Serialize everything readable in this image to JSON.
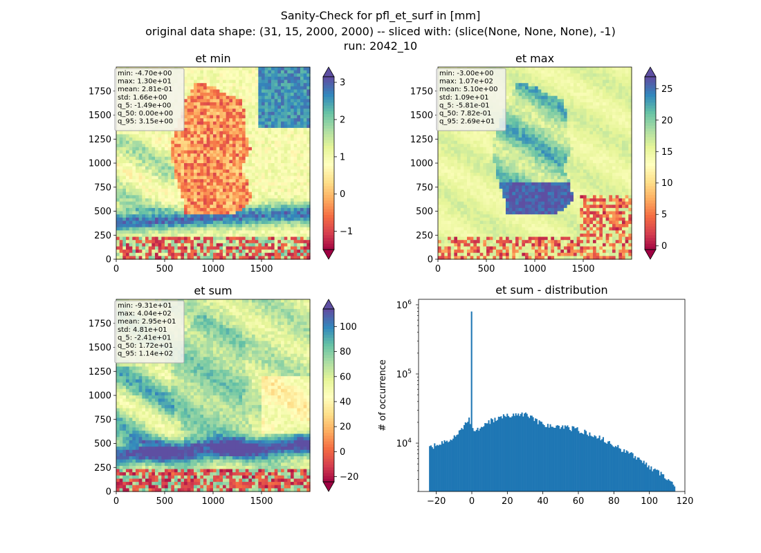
{
  "suptitle": {
    "line1": "Sanity-Check for pfl_et_surf in [mm]",
    "line2": "original data shape: (31, 15, 2000, 2000) -- sliced with: (slice(None, None, None), -1)",
    "line3": "run: 2042_10"
  },
  "chart_data": [
    {
      "type": "heatmap",
      "title": "et min",
      "colormap": "Spectral",
      "xlim": [
        0,
        2000
      ],
      "ylim": [
        0,
        2000
      ],
      "xticks": [
        0,
        500,
        1000,
        1500
      ],
      "yticks": [
        0,
        250,
        500,
        750,
        1000,
        1250,
        1500,
        1750
      ],
      "colorbar": {
        "ticks": [
          -1,
          0,
          1,
          2,
          3
        ],
        "range": [
          -1.49,
          3.15
        ],
        "extend": "both"
      },
      "stats": [
        "min: -4.70e+00",
        "max: 1.30e+01",
        "mean: 2.81e-01",
        "std: 1.66e+00",
        "q_5: -1.49e+00",
        "q_50: 0.00e+00",
        "q_95: 3.15e+00"
      ]
    },
    {
      "type": "heatmap",
      "title": "et max",
      "colormap": "Spectral",
      "xlim": [
        0,
        2000
      ],
      "ylim": [
        0,
        2000
      ],
      "xticks": [
        0,
        500,
        1000,
        1500
      ],
      "yticks": [
        0,
        250,
        500,
        750,
        1000,
        1250,
        1500,
        1750
      ],
      "colorbar": {
        "ticks": [
          0,
          5,
          10,
          15,
          20,
          25
        ],
        "range": [
          -0.58,
          26.9
        ],
        "extend": "both"
      },
      "stats": [
        "min: -3.00e+00",
        "max: 1.07e+02",
        "mean: 5.10e+00",
        "std: 1.09e+01",
        "q_5: -5.81e-01",
        "q_50: 7.82e-01",
        "q_95: 2.69e+01"
      ]
    },
    {
      "type": "heatmap",
      "title": "et sum",
      "colormap": "Spectral",
      "xlim": [
        0,
        2000
      ],
      "ylim": [
        0,
        2000
      ],
      "xticks": [
        0,
        500,
        1000,
        1500
      ],
      "yticks": [
        0,
        250,
        500,
        750,
        1000,
        1250,
        1500,
        1750
      ],
      "colorbar": {
        "ticks": [
          -20,
          0,
          20,
          40,
          60,
          80,
          100
        ],
        "range": [
          -24.1,
          114
        ],
        "extend": "both"
      },
      "stats": [
        "min: -9.31e+01",
        "max: 4.04e+02",
        "mean: 2.95e+01",
        "std: 4.81e+01",
        "q_5: -2.41e+01",
        "q_50: 1.72e+01",
        "q_95: 1.14e+02"
      ]
    },
    {
      "type": "bar",
      "title": "et sum - distribution",
      "ylabel": "# of occurrence",
      "xlabel": "",
      "yscale": "log",
      "xlim": [
        -30,
        120
      ],
      "ylim": [
        2000,
        1200000
      ],
      "xticks": [
        -20,
        0,
        20,
        40,
        60,
        80,
        100,
        120
      ],
      "yticks": [
        10000,
        100000,
        1000000
      ],
      "ytick_labels": [
        "10",
        "10",
        "10"
      ],
      "ytick_exponents": [
        "4",
        "5",
        "6"
      ],
      "bin_range": [
        -24.1,
        114.5
      ],
      "bins": 200,
      "spike": {
        "x": 0,
        "count": 800000
      },
      "color": "#1f77b4",
      "anchors": [
        [
          -24,
          8500
        ],
        [
          -20,
          9500
        ],
        [
          -15,
          10500
        ],
        [
          -10,
          12000
        ],
        [
          -5,
          16000
        ],
        [
          -2,
          23000
        ],
        [
          2,
          15000
        ],
        [
          5,
          17500
        ],
        [
          10,
          20500
        ],
        [
          15,
          23000
        ],
        [
          20,
          25000
        ],
        [
          25,
          27000
        ],
        [
          30,
          26000
        ],
        [
          35,
          22000
        ],
        [
          40,
          19000
        ],
        [
          45,
          17500
        ],
        [
          50,
          17000
        ],
        [
          55,
          16500
        ],
        [
          60,
          15500
        ],
        [
          65,
          14000
        ],
        [
          70,
          12500
        ],
        [
          75,
          11000
        ],
        [
          80,
          9500
        ],
        [
          85,
          8000
        ],
        [
          90,
          6800
        ],
        [
          95,
          5600
        ],
        [
          100,
          4500
        ],
        [
          105,
          3800
        ],
        [
          110,
          3000
        ],
        [
          114,
          2500
        ]
      ]
    }
  ]
}
